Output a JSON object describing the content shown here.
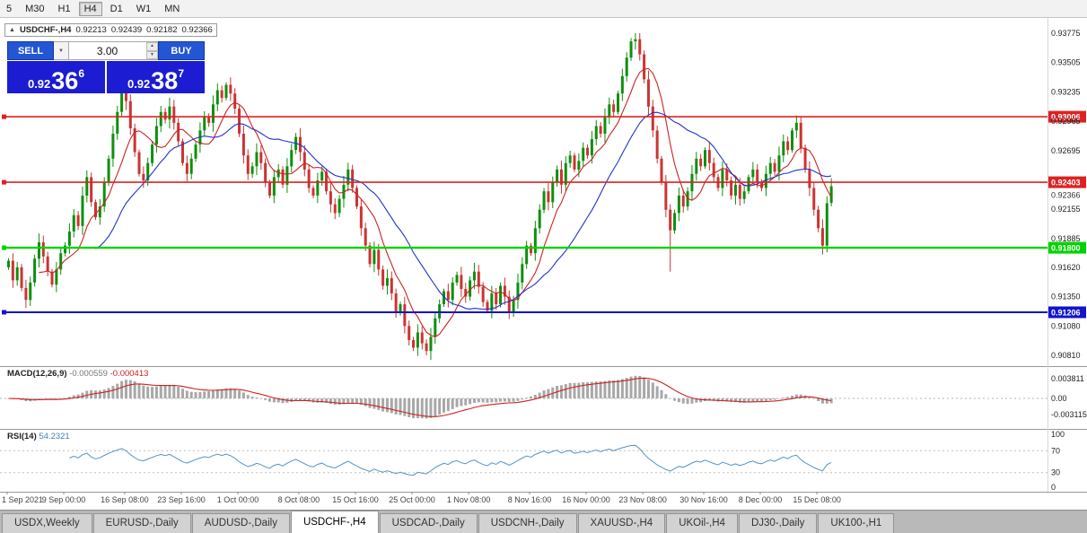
{
  "toolbar": {
    "timeframes": [
      "5",
      "M30",
      "H1",
      "H4",
      "D1",
      "W1",
      "MN"
    ],
    "active": "H4"
  },
  "chart_header": {
    "collapse": "▲",
    "symbol": "USDCHF-,H4",
    "open": "0.92213",
    "high": "0.92439",
    "low": "0.92182",
    "close": "0.92366"
  },
  "icons": {
    "dropdown": "▼",
    "spin_up": "▲",
    "spin_down": "▼"
  },
  "trade_panel": {
    "sell_label": "SELL",
    "buy_label": "BUY",
    "volume": "3.00",
    "sell_price_main": "0.92",
    "sell_price_big": "36",
    "sell_price_sup": "6",
    "buy_price_main": "0.92",
    "buy_price_big": "38",
    "buy_price_sup": "7",
    "panel_color": "#1c1cd2",
    "button_color": "#2356d4"
  },
  "indicators": {
    "macd": {
      "label": "MACD(12,26,9)",
      "value_main": "-0.000559",
      "value_signal": "-0.000413",
      "axis_labels": [
        "0.003811",
        "0.00",
        "-0.003115"
      ],
      "histogram_color": "#a8a8a8",
      "signal_color": "#cc2222"
    },
    "rsi": {
      "label": "RSI(14)",
      "value": "54.2321",
      "axis_labels": [
        "100",
        "70",
        "30",
        "0"
      ],
      "levels": [
        70,
        30
      ],
      "line_color": "#4f94cd"
    }
  },
  "tabs": {
    "items": [
      "USDX,Weekly",
      "EURUSD-,Daily",
      "AUDUSD-,Daily",
      "USDCHF-,H4",
      "USDCAD-,Daily",
      "USDCNH-,Daily",
      "XAUUSD-,H4",
      "UKOil-,H4",
      "DJ30-,Daily",
      "UK100-,H1"
    ],
    "active": "USDCHF-,H4"
  },
  "chart_data": {
    "type": "candlestick",
    "symbol": "USDCHF-",
    "timeframe": "H4",
    "title": "USDCHF-,H4",
    "last_ohlc": {
      "open": 0.92213,
      "high": 0.92439,
      "low": 0.92182,
      "close": 0.92366
    },
    "current_price_label": "0.92366",
    "current_price": 0.92366,
    "up_color": "#0e8f0e",
    "down_color": "#cc3333",
    "ma_fast_color": "#cc2222",
    "ma_slow_color": "#2233cc",
    "y_axis_labels": [
      "0.93775",
      "0.93505",
      "0.93235",
      "0.92965",
      "0.92695",
      "0.92155",
      "0.91885",
      "0.91620",
      "0.91350",
      "0.91080",
      "0.90810"
    ],
    "x_labels": [
      "1 Sep 2021",
      "9 Sep 00:00",
      "16 Sep 08:00",
      "23 Sep 16:00",
      "1 Oct 00:00",
      "8 Oct 08:00",
      "15 Oct 16:00",
      "25 Oct 00:00",
      "1 Nov 08:00",
      "8 Nov 16:00",
      "16 Nov 00:00",
      "23 Nov 08:00",
      "30 Nov 16:00",
      "8 Dec 00:00",
      "15 Dec 08:00"
    ],
    "levels": [
      {
        "price": 0.93006,
        "label": "0.93006",
        "color": "#dd2222",
        "width": 1.6,
        "type": "resistance"
      },
      {
        "price": 0.92403,
        "label": "0.92403",
        "color": "#dd2222",
        "width": 1.6,
        "type": "resistance"
      },
      {
        "price": 0.918,
        "label": "0.91800",
        "color": "#00d400",
        "width": 2.4,
        "type": "support"
      },
      {
        "price": 0.91206,
        "label": "0.91206",
        "color": "#1414cc",
        "width": 2.0,
        "type": "support"
      }
    ],
    "closes": [
      0.9168,
      0.915,
      0.9162,
      0.9143,
      0.9132,
      0.9148,
      0.917,
      0.9185,
      0.9172,
      0.9158,
      0.9146,
      0.916,
      0.9175,
      0.9182,
      0.9195,
      0.921,
      0.92,
      0.9228,
      0.9245,
      0.9222,
      0.9208,
      0.9218,
      0.924,
      0.9262,
      0.9285,
      0.9305,
      0.9328,
      0.9315,
      0.929,
      0.9268,
      0.9248,
      0.9242,
      0.9258,
      0.9275,
      0.9292,
      0.9305,
      0.9298,
      0.931,
      0.9295,
      0.9278,
      0.9258,
      0.9248,
      0.9262,
      0.9275,
      0.9288,
      0.93,
      0.9295,
      0.9312,
      0.9325,
      0.9318,
      0.933,
      0.9322,
      0.9308,
      0.9285,
      0.9265,
      0.9248,
      0.9255,
      0.9268,
      0.9258,
      0.924,
      0.9228,
      0.9245,
      0.9252,
      0.9238,
      0.9255,
      0.927,
      0.9282,
      0.9268,
      0.9252,
      0.9235,
      0.9228,
      0.9242,
      0.925,
      0.9232,
      0.922,
      0.9212,
      0.9225,
      0.9238,
      0.9252,
      0.9235,
      0.9218,
      0.9198,
      0.9182,
      0.9165,
      0.9178,
      0.916,
      0.9145,
      0.9152,
      0.9138,
      0.912,
      0.9128,
      0.9108,
      0.9095,
      0.9088,
      0.9102,
      0.9092,
      0.9085,
      0.9098,
      0.9115,
      0.9128,
      0.914,
      0.9132,
      0.9148,
      0.9155,
      0.9142,
      0.9135,
      0.915,
      0.9158,
      0.9144,
      0.913,
      0.9122,
      0.9138,
      0.9128,
      0.9145,
      0.9135,
      0.912,
      0.9132,
      0.9148,
      0.9165,
      0.9182,
      0.9175,
      0.9198,
      0.9215,
      0.9232,
      0.9222,
      0.924,
      0.9252,
      0.9238,
      0.9258,
      0.9265,
      0.9252,
      0.926,
      0.9272,
      0.9265,
      0.928,
      0.9292,
      0.9285,
      0.93,
      0.9312,
      0.9305,
      0.9322,
      0.9338,
      0.9355,
      0.937,
      0.9372,
      0.9358,
      0.9335,
      0.931,
      0.9288,
      0.9262,
      0.924,
      0.9215,
      0.9196,
      0.9212,
      0.9228,
      0.9218,
      0.9232,
      0.9248,
      0.9262,
      0.9255,
      0.927,
      0.9258,
      0.9245,
      0.9235,
      0.9252,
      0.9242,
      0.9228,
      0.9238,
      0.9225,
      0.9232,
      0.9245,
      0.9252,
      0.924,
      0.9235,
      0.9248,
      0.9258,
      0.925,
      0.9265,
      0.9278,
      0.927,
      0.9288,
      0.9295,
      0.9272,
      0.9252,
      0.9235,
      0.9215,
      0.9198,
      0.9182,
      0.9221,
      0.92366
    ]
  }
}
